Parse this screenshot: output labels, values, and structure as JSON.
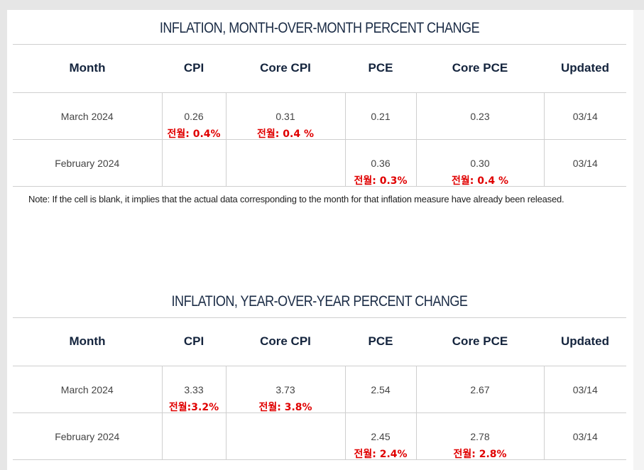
{
  "mom": {
    "title": "INFLATION, MONTH-OVER-MONTH PERCENT CHANGE",
    "headers": [
      "Month",
      "CPI",
      "Core CPI",
      "PCE",
      "Core PCE",
      "Updated"
    ],
    "rows": [
      {
        "month": "March 2024",
        "cpi": "0.26",
        "cpi_note": "전월: 0.4%",
        "core_cpi": "0.31",
        "core_cpi_note": "전월: 0.4 %",
        "pce": "0.21",
        "pce_note": "",
        "core_pce": "0.23",
        "core_pce_note": "",
        "updated": "03/14"
      },
      {
        "month": "February 2024",
        "cpi": "",
        "cpi_note": "",
        "core_cpi": "",
        "core_cpi_note": "",
        "pce": "0.36",
        "pce_note": "전월: 0.3%",
        "core_pce": "0.30",
        "core_pce_note": "전월: 0.4 %",
        "updated": "03/14"
      }
    ]
  },
  "footnote": "Note: If the cell is blank, it implies that the actual data corresponding to the month for that inflation measure have already been released.",
  "yoy": {
    "title": "INFLATION, YEAR-OVER-YEAR PERCENT CHANGE",
    "headers": [
      "Month",
      "CPI",
      "Core CPI",
      "PCE",
      "Core PCE",
      "Updated"
    ],
    "rows": [
      {
        "month": "March 2024",
        "cpi": "3.33",
        "cpi_note": "전월:3.2%",
        "core_cpi": "3.73",
        "core_cpi_note": "전월: 3.8%",
        "pce": "2.54",
        "pce_note": "",
        "core_pce": "2.67",
        "core_pce_note": "",
        "updated": "03/14"
      },
      {
        "month": "February 2024",
        "cpi": "",
        "cpi_note": "",
        "core_cpi": "",
        "core_cpi_note": "",
        "pce": "2.45",
        "pce_note": "전월: 2.4%",
        "core_pce": "2.78",
        "core_pce_note": "전월: 2.8%",
        "updated": "03/14"
      }
    ]
  }
}
